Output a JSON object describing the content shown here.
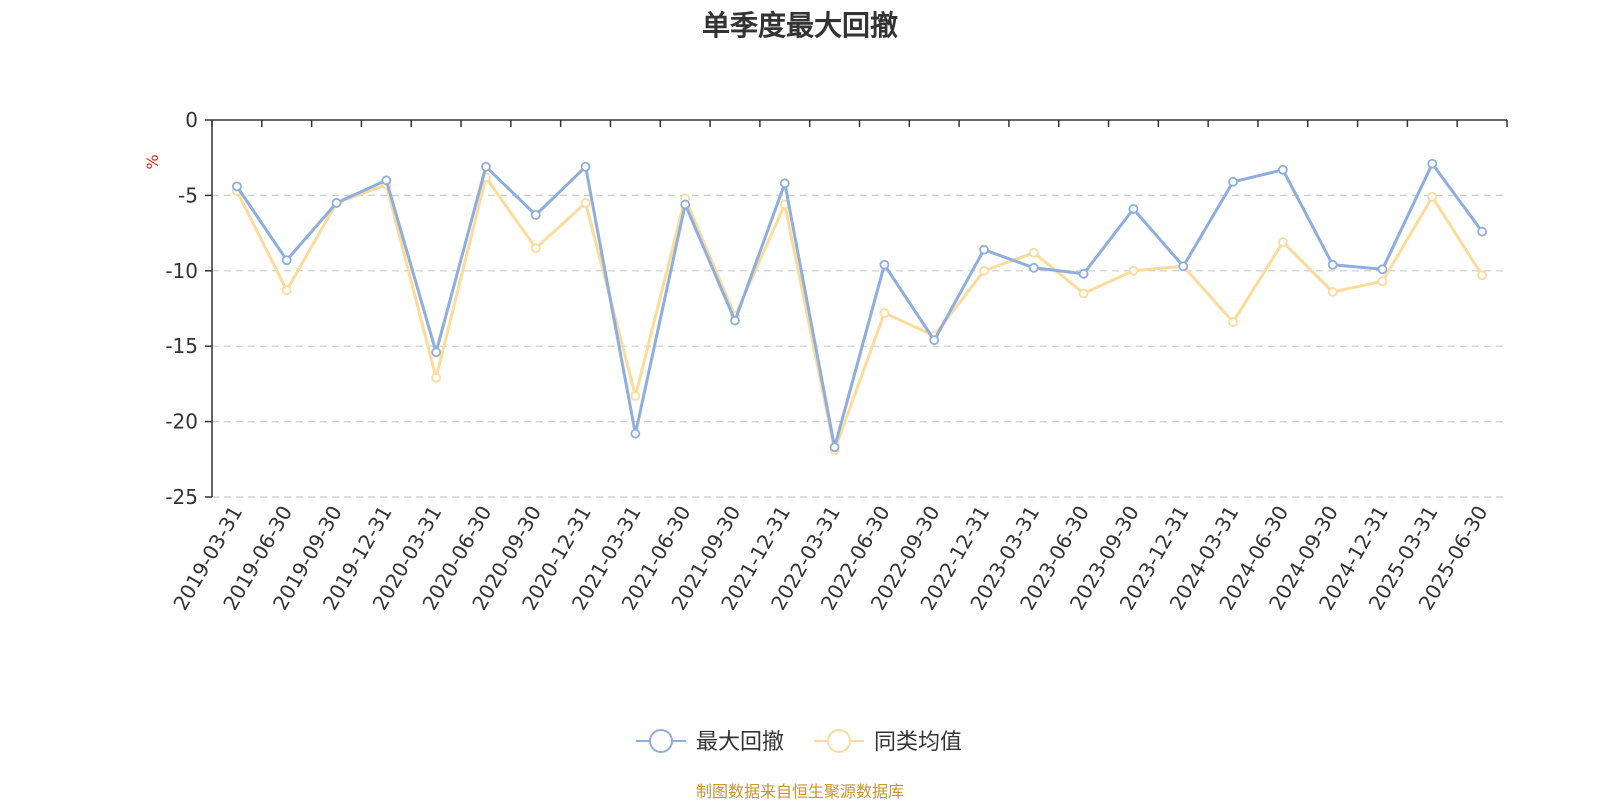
{
  "chart_data": {
    "type": "line",
    "title": "单季度最大回撤",
    "ylabel": "%",
    "ylim": [
      -25,
      0
    ],
    "yticks": [
      0,
      -5,
      -10,
      -15,
      -20,
      -25
    ],
    "grid": true,
    "legend_position": "bottom-center",
    "source": "制图数据来自恒生聚源数据库",
    "categories": [
      "2019-03-31",
      "2019-06-30",
      "2019-09-30",
      "2019-12-31",
      "2020-03-31",
      "2020-06-30",
      "2020-09-30",
      "2020-12-31",
      "2021-03-31",
      "2021-06-30",
      "2021-09-30",
      "2021-12-31",
      "2022-03-31",
      "2022-06-30",
      "2022-09-30",
      "2022-12-31",
      "2023-03-31",
      "2023-06-30",
      "2023-09-30",
      "2023-12-31",
      "2024-03-31",
      "2024-06-30",
      "2024-09-30",
      "2024-12-31",
      "2025-03-31",
      "2025-06-30"
    ],
    "series": [
      {
        "name": "最大回撤",
        "color": "#8eaede",
        "values": [
          -4.4,
          -9.3,
          -5.5,
          -4.0,
          -15.4,
          -3.1,
          -6.3,
          -3.1,
          -20.8,
          -5.6,
          -13.3,
          -4.2,
          -21.7,
          -9.6,
          -14.6,
          -8.6,
          -9.8,
          -10.2,
          -5.9,
          -9.7,
          -4.1,
          -3.3,
          -9.6,
          -9.9,
          -2.9,
          -7.4
        ]
      },
      {
        "name": "同类均值",
        "color": "#fddb9b",
        "values": [
          -4.7,
          -11.3,
          -5.5,
          -4.3,
          -17.1,
          -3.8,
          -8.5,
          -5.5,
          -18.3,
          -5.2,
          -13.0,
          -5.6,
          -21.9,
          -12.8,
          -14.3,
          -10.0,
          -8.8,
          -11.5,
          -10.0,
          -9.7,
          -13.4,
          -8.1,
          -11.4,
          -10.7,
          -5.1,
          -10.3
        ]
      }
    ]
  }
}
